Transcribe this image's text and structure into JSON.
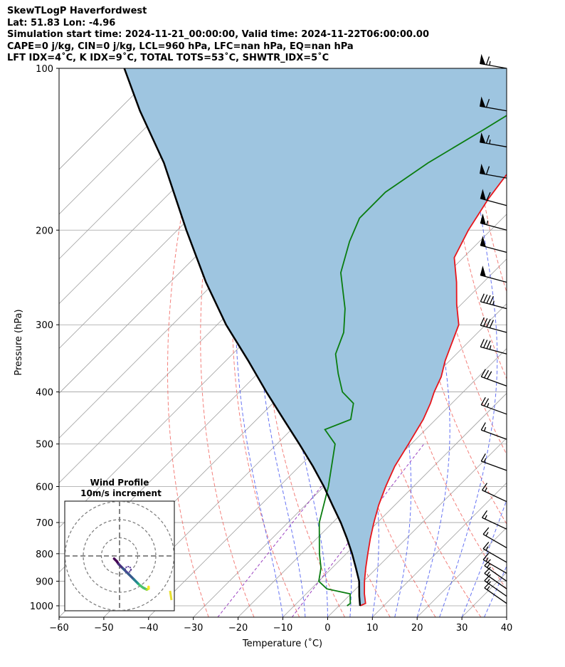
{
  "header": {
    "line1": "SkewTLogP Haverfordwest",
    "line2": "Lat: 51.83   Lon: -4.96",
    "line3": "Simulation start time: 2024-11-21_00:00:00, Valid time: 2024-11-22T06:00:00.00",
    "line4": "CAPE=0 j/kg, CIN=0 j/kg, LCL=960 hPa, LFC=nan hPa, EQ=nan hPa",
    "line5": "LFT IDX=4˚C, K IDX=9˚C, TOTAL TOTS=53˚C, SHWTR_IDX=5˚C"
  },
  "chart_data": {
    "type": "line",
    "skewt": true,
    "xlabel": "Temperature (˚C)",
    "ylabel": "Pressure (hPa)",
    "xlim": [
      -60,
      40
    ],
    "ylim": [
      1050,
      100
    ],
    "yscale": "log",
    "grid": true,
    "x_ticks": [
      "−60",
      "−50",
      "−40",
      "−30",
      "−20",
      "−10",
      "0",
      "10",
      "20",
      "30",
      "40"
    ],
    "y_ticks": [
      "100",
      "200",
      "300",
      "400",
      "500",
      "600",
      "700",
      "800",
      "900",
      "1000"
    ],
    "y_tick_values": [
      100,
      200,
      300,
      400,
      500,
      600,
      700,
      800,
      900,
      1000
    ],
    "colors": {
      "temperature": "#e8151b",
      "dewpoint": "#0a7d10",
      "parcel": "#000000",
      "shade": "#9ec5e0",
      "dry_adiabat": "#f0605a",
      "moist_adiabat": "#4050f0",
      "mixing_ratio": "#9a40c0",
      "isotherm": "#a0a0a0"
    },
    "series": [
      {
        "key": "temperature",
        "points": [
          [
            4.7,
            1000
          ],
          [
            5.4,
            990
          ],
          [
            3,
            950
          ],
          [
            0.2,
            900
          ],
          [
            -2.5,
            850
          ],
          [
            -5.2,
            800
          ],
          [
            -8,
            750
          ],
          [
            -10.8,
            700
          ],
          [
            -13.6,
            650
          ],
          [
            -16.2,
            600
          ],
          [
            -18.7,
            550
          ],
          [
            -20.6,
            500
          ],
          [
            -22.8,
            450
          ],
          [
            -24.8,
            420
          ],
          [
            -26.5,
            400
          ],
          [
            -28.3,
            375
          ],
          [
            -31,
            350
          ],
          [
            -36,
            300
          ],
          [
            -41,
            275
          ],
          [
            -46,
            250
          ],
          [
            -52,
            225
          ],
          [
            -55,
            200
          ],
          [
            -57.5,
            175
          ],
          [
            -59.5,
            150
          ],
          [
            -60.5,
            140
          ],
          [
            -61,
            125
          ],
          [
            -61.5,
            115
          ],
          [
            -62,
            100
          ]
        ]
      },
      {
        "key": "dewpoint",
        "points": [
          [
            1.8,
            1000
          ],
          [
            2,
            990
          ],
          [
            -0.2,
            950
          ],
          [
            -6.5,
            930
          ],
          [
            -10,
            900
          ],
          [
            -12.5,
            850
          ],
          [
            -16,
            800
          ],
          [
            -23,
            700
          ],
          [
            -29,
            600
          ],
          [
            -37,
            500
          ],
          [
            -42.5,
            470
          ],
          [
            -39,
            450
          ],
          [
            -42,
            420
          ],
          [
            -47,
            400
          ],
          [
            -52,
            370
          ],
          [
            -57,
            340
          ],
          [
            -60,
            310
          ],
          [
            -65,
            280
          ],
          [
            -74,
            240
          ],
          [
            -79,
            210
          ],
          [
            -82,
            190
          ],
          [
            -82,
            170
          ],
          [
            -79,
            150
          ],
          [
            -74,
            130
          ],
          [
            -70,
            115
          ],
          [
            -67,
            100
          ]
        ]
      },
      {
        "key": "parcel",
        "points": [
          [
            4.7,
            1000
          ],
          [
            2.4,
            960
          ],
          [
            -1,
            900
          ],
          [
            -4.7,
            850
          ],
          [
            -8.7,
            800
          ],
          [
            -13.2,
            750
          ],
          [
            -18.2,
            700
          ],
          [
            -23.9,
            650
          ],
          [
            -30,
            600
          ],
          [
            -37,
            550
          ],
          [
            -45,
            500
          ],
          [
            -54,
            450
          ],
          [
            -64,
            400
          ],
          [
            -75,
            350
          ],
          [
            -88,
            300
          ],
          [
            -102,
            250
          ],
          [
            -118,
            200
          ],
          [
            -138,
            150
          ],
          [
            -155,
            120
          ],
          [
            -168,
            100
          ]
        ]
      }
    ],
    "hodograph": {
      "title": "Wind Profile",
      "subtitle": "10m/s increment",
      "rings_mps": [
        10,
        20,
        30
      ],
      "points": [
        [
          -3,
          -1.5
        ],
        [
          -1.5,
          -3
        ],
        [
          -0.5,
          -4.5
        ],
        [
          2,
          -7
        ],
        [
          5,
          -10
        ],
        [
          8,
          -13
        ],
        [
          10,
          -15
        ],
        [
          11,
          -16
        ],
        [
          13,
          -17.5
        ],
        [
          15,
          -18.5
        ],
        [
          16,
          -18
        ],
        [
          16,
          -17
        ]
      ]
    },
    "wind_barbs": [
      {
        "p": 100,
        "dir": 280,
        "kt": 65
      },
      {
        "p": 120,
        "dir": 280,
        "kt": 60
      },
      {
        "p": 140,
        "dir": 280,
        "kt": 65
      },
      {
        "p": 160,
        "dir": 280,
        "kt": 60
      },
      {
        "p": 180,
        "dir": 285,
        "kt": 60
      },
      {
        "p": 200,
        "dir": 285,
        "kt": 55
      },
      {
        "p": 220,
        "dir": 285,
        "kt": 50
      },
      {
        "p": 250,
        "dir": 285,
        "kt": 50
      },
      {
        "p": 280,
        "dir": 285,
        "kt": 45
      },
      {
        "p": 310,
        "dir": 285,
        "kt": 40
      },
      {
        "p": 340,
        "dir": 285,
        "kt": 35
      },
      {
        "p": 390,
        "dir": 290,
        "kt": 30
      },
      {
        "p": 440,
        "dir": 290,
        "kt": 25
      },
      {
        "p": 490,
        "dir": 290,
        "kt": 15
      },
      {
        "p": 560,
        "dir": 290,
        "kt": 15
      },
      {
        "p": 640,
        "dir": 295,
        "kt": 15
      },
      {
        "p": 720,
        "dir": 295,
        "kt": 15
      },
      {
        "p": 780,
        "dir": 300,
        "kt": 15
      },
      {
        "p": 830,
        "dir": 300,
        "kt": 15
      },
      {
        "p": 870,
        "dir": 300,
        "kt": 15
      },
      {
        "p": 900,
        "dir": 305,
        "kt": 15
      },
      {
        "p": 930,
        "dir": 305,
        "kt": 15
      },
      {
        "p": 960,
        "dir": 305,
        "kt": 15
      },
      {
        "p": 990,
        "dir": 305,
        "kt": 15
      }
    ]
  }
}
